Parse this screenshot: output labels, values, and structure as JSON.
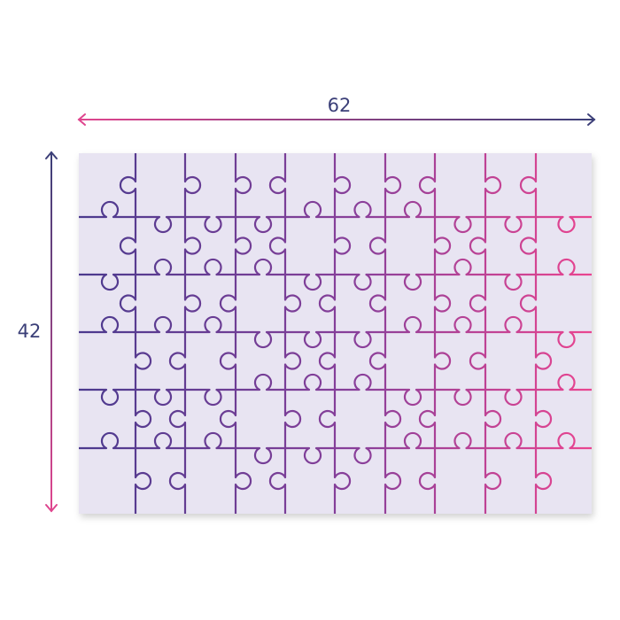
{
  "dimensions": {
    "width_label": "62",
    "height_label": "42"
  },
  "puzzle": {
    "columns": 10,
    "rows": 6,
    "board_color": "#e8e4f2",
    "line_color_start": "#4b3a8e",
    "line_color_end": "#ea4590"
  },
  "colors": {
    "navy": "#3b3f78",
    "pink": "#e0458e"
  }
}
